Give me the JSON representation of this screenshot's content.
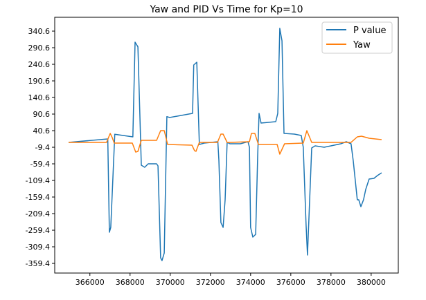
{
  "chart_data": {
    "type": "line",
    "title": "Yaw and PID Vs Time for Kp=10",
    "xlabel": "",
    "ylabel": "",
    "xlim": [
      364250,
      381350
    ],
    "ylim": [
      -388.5,
      382.3
    ],
    "xticks": [
      366000,
      368000,
      370000,
      372000,
      374000,
      376000,
      378000,
      380000
    ],
    "xtick_labels": [
      "366000",
      "368000",
      "370000",
      "372000",
      "374000",
      "376000",
      "378000",
      "380000"
    ],
    "yticks": [
      340.6,
      290.6,
      240.6,
      190.6,
      140.6,
      90.6,
      40.6,
      -9.4,
      -59.4,
      -109.4,
      -159.4,
      -209.4,
      -259.4,
      -309.4,
      -359.4
    ],
    "ytick_labels": [
      "340.6",
      "290.6",
      "240.6",
      "190.6",
      "140.6",
      "90.6",
      "40.6",
      "-9.4",
      "-59.4",
      "-109.4",
      "-159.4",
      "-209.4",
      "-259.4",
      "-309.4",
      "-359.4"
    ],
    "grid": false,
    "legend_position": "top-right",
    "series": [
      {
        "name": "P value",
        "color": "#1f77b4",
        "points": [
          [
            364940,
            5.2
          ],
          [
            366890,
            15.6
          ],
          [
            366970,
            -265.6
          ],
          [
            367040,
            -251
          ],
          [
            367240,
            29.6
          ],
          [
            368140,
            21.9
          ],
          [
            368250,
            307.3
          ],
          [
            368390,
            293.3
          ],
          [
            368560,
            -63.5
          ],
          [
            368730,
            -69.7
          ],
          [
            368900,
            -59.3
          ],
          [
            369320,
            -59.3
          ],
          [
            369390,
            -65.6
          ],
          [
            369520,
            -342.6
          ],
          [
            369590,
            -351
          ],
          [
            369700,
            -328
          ],
          [
            369830,
            82.9
          ],
          [
            369970,
            80.3
          ],
          [
            371110,
            92.7
          ],
          [
            371170,
            238.5
          ],
          [
            371320,
            246.9
          ],
          [
            371450,
            -1.0
          ],
          [
            371690,
            3.2
          ],
          [
            372370,
            7.3
          ],
          [
            372420,
            -49
          ],
          [
            372520,
            -236.4
          ],
          [
            372630,
            -251
          ],
          [
            372730,
            -167.6
          ],
          [
            372830,
            5.2
          ],
          [
            372970,
            1.0
          ],
          [
            373490,
            1.0
          ],
          [
            373870,
            7.3
          ],
          [
            373940,
            -9.4
          ],
          [
            374000,
            -251
          ],
          [
            374110,
            -280.1
          ],
          [
            374250,
            -271.9
          ],
          [
            374350,
            -36.5
          ],
          [
            374420,
            92.7
          ],
          [
            374520,
            63.6
          ],
          [
            375250,
            67.7
          ],
          [
            375350,
            92.7
          ],
          [
            375450,
            348.9
          ],
          [
            375560,
            311.4
          ],
          [
            375660,
            32.3
          ],
          [
            376180,
            30.2
          ],
          [
            376520,
            26.1
          ],
          [
            376620,
            -9.4
          ],
          [
            376760,
            -244.7
          ],
          [
            376830,
            -334.3
          ],
          [
            377040,
            -11.5
          ],
          [
            377210,
            -5.2
          ],
          [
            377660,
            -9.4
          ],
          [
            378000,
            -5.2
          ],
          [
            378490,
            1.0
          ],
          [
            378760,
            7.3
          ],
          [
            379000,
            1.0
          ],
          [
            379110,
            -51.1
          ],
          [
            379310,
            -167.6
          ],
          [
            379380,
            -167.6
          ],
          [
            379490,
            -188.5
          ],
          [
            379620,
            -167.6
          ],
          [
            379730,
            -136.4
          ],
          [
            379900,
            -105.2
          ],
          [
            380140,
            -103.1
          ],
          [
            380310,
            -94.8
          ],
          [
            380520,
            -86.4
          ]
        ]
      },
      {
        "name": "Yaw",
        "color": "#ff7f0e",
        "points": [
          [
            364940,
            5.2
          ],
          [
            366830,
            5.2
          ],
          [
            367010,
            32.3
          ],
          [
            367110,
            19.8
          ],
          [
            367210,
            3.2
          ],
          [
            368110,
            3.2
          ],
          [
            368280,
            -23.9
          ],
          [
            368390,
            -21.9
          ],
          [
            368560,
            11.5
          ],
          [
            369320,
            11.5
          ],
          [
            369520,
            40.7
          ],
          [
            369700,
            40.7
          ],
          [
            369870,
            -1.0
          ],
          [
            371080,
            -3.1
          ],
          [
            371210,
            -19.7
          ],
          [
            371280,
            -21.9
          ],
          [
            371450,
            5.2
          ],
          [
            372350,
            5.2
          ],
          [
            372520,
            30.2
          ],
          [
            372630,
            30.2
          ],
          [
            372830,
            5.2
          ],
          [
            372970,
            5.2
          ],
          [
            373940,
            7.3
          ],
          [
            374040,
            32.3
          ],
          [
            374210,
            32.3
          ],
          [
            374390,
            -1.0
          ],
          [
            375320,
            -1.0
          ],
          [
            375450,
            -30.2
          ],
          [
            375690,
            1.0
          ],
          [
            376620,
            3.2
          ],
          [
            376800,
            40.7
          ],
          [
            377040,
            5.2
          ],
          [
            379000,
            5.2
          ],
          [
            379310,
            21.9
          ],
          [
            379520,
            23.9
          ],
          [
            379900,
            17.7
          ],
          [
            380520,
            13.6
          ]
        ]
      }
    ]
  }
}
